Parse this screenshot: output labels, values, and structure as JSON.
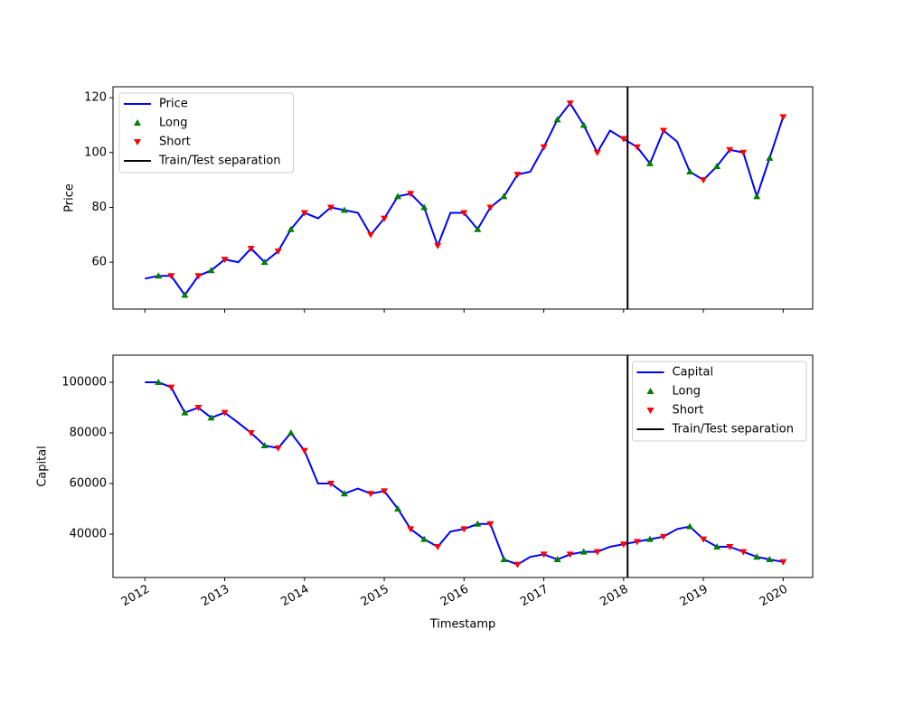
{
  "chart_data": [
    {
      "type": "line",
      "ylabel": "Price",
      "legend": "upper left",
      "xticklabels": false,
      "xlim": [
        2011.6,
        2020.37
      ],
      "xticks": [
        2012,
        2013,
        2014,
        2015,
        2016,
        2017,
        2018,
        2019,
        2020
      ],
      "ylim": [
        42.9,
        124
      ],
      "yticks": [
        60,
        80,
        100,
        120
      ],
      "series": [
        {
          "name": "Price",
          "color": "#0000ff",
          "x": [
            2012.0,
            2012.17,
            2012.33,
            2012.5,
            2012.67,
            2012.83,
            2013.0,
            2013.17,
            2013.33,
            2013.5,
            2013.67,
            2013.83,
            2014.0,
            2014.17,
            2014.33,
            2014.5,
            2014.67,
            2014.83,
            2015.0,
            2015.17,
            2015.33,
            2015.5,
            2015.67,
            2015.83,
            2016.0,
            2016.17,
            2016.33,
            2016.5,
            2016.67,
            2016.83,
            2017.0,
            2017.17,
            2017.33,
            2017.5,
            2017.67,
            2017.83,
            2018.0,
            2018.17,
            2018.33,
            2018.5,
            2018.67,
            2018.83,
            2019.0,
            2019.17,
            2019.33,
            2019.5,
            2019.67,
            2019.83,
            2020.0
          ],
          "values": [
            54,
            55,
            55,
            48,
            55,
            57,
            61,
            60,
            65,
            60,
            64,
            72,
            78,
            76,
            80,
            79,
            78,
            70,
            76,
            84,
            85,
            80,
            66,
            78,
            78,
            72,
            80,
            84,
            92,
            93,
            102,
            112,
            118,
            110,
            100,
            108,
            105,
            102,
            96,
            108,
            104,
            93,
            90,
            95,
            101,
            100,
            84,
            98,
            113
          ]
        },
        {
          "name": "Long",
          "color": "#008000",
          "marker": "up",
          "x": [
            2012.17,
            2012.5,
            2012.83,
            2013.5,
            2013.83,
            2014.5,
            2015.17,
            2015.5,
            2016.17,
            2016.5,
            2017.17,
            2017.5,
            2018.33,
            2018.83,
            2019.17,
            2019.67,
            2019.83
          ],
          "values": [
            55,
            48,
            57,
            60,
            72,
            79,
            84,
            80,
            72,
            84,
            112,
            110,
            96,
            93,
            95,
            84,
            98
          ]
        },
        {
          "name": "Short",
          "color": "#ff0000",
          "marker": "down",
          "x": [
            2012.33,
            2012.67,
            2013.0,
            2013.33,
            2013.67,
            2014.0,
            2014.33,
            2014.83,
            2015.0,
            2015.33,
            2015.67,
            2016.0,
            2016.33,
            2016.67,
            2017.0,
            2017.33,
            2017.67,
            2018.0,
            2018.17,
            2018.5,
            2019.0,
            2019.33,
            2019.5,
            2020.0
          ],
          "values": [
            55,
            55,
            61,
            65,
            64,
            78,
            80,
            70,
            76,
            85,
            66,
            78,
            80,
            92,
            102,
            118,
            100,
            105,
            102,
            108,
            90,
            101,
            100,
            113
          ]
        }
      ],
      "separation": {
        "name": "Train/Test separation",
        "color": "#000000",
        "x": 2018.05
      }
    },
    {
      "type": "line",
      "ylabel": "Capital",
      "xlabel": "Timestamp",
      "legend": "upper right",
      "xticklabels": true,
      "xlim": [
        2011.6,
        2020.37
      ],
      "xticks": [
        2012,
        2013,
        2014,
        2015,
        2016,
        2017,
        2018,
        2019,
        2020
      ],
      "ylim": [
        22860,
        110710
      ],
      "yticks": [
        40000,
        60000,
        80000,
        100000
      ],
      "series": [
        {
          "name": "Capital",
          "color": "#0000ff",
          "x": [
            2012.0,
            2012.17,
            2012.33,
            2012.5,
            2012.67,
            2012.83,
            2013.0,
            2013.17,
            2013.33,
            2013.5,
            2013.67,
            2013.83,
            2014.0,
            2014.17,
            2014.33,
            2014.5,
            2014.67,
            2014.83,
            2015.0,
            2015.17,
            2015.33,
            2015.5,
            2015.67,
            2015.83,
            2016.0,
            2016.17,
            2016.33,
            2016.5,
            2016.67,
            2016.83,
            2017.0,
            2017.17,
            2017.33,
            2017.5,
            2017.67,
            2017.83,
            2018.0,
            2018.17,
            2018.33,
            2018.5,
            2018.67,
            2018.83,
            2019.0,
            2019.17,
            2019.33,
            2019.5,
            2019.67,
            2019.83,
            2020.0
          ],
          "values": [
            100000,
            100000,
            98000,
            88000,
            90000,
            86000,
            88000,
            84000,
            80000,
            75000,
            74000,
            80000,
            73000,
            60000,
            60000,
            56000,
            58000,
            56000,
            57000,
            50000,
            42000,
            38000,
            35000,
            41000,
            42000,
            44000,
            44000,
            30000,
            28000,
            31000,
            32000,
            30000,
            32000,
            33000,
            33000,
            35000,
            36000,
            37000,
            38000,
            39000,
            42000,
            43000,
            38000,
            35000,
            35000,
            33000,
            31000,
            30000,
            29000
          ]
        },
        {
          "name": "Long",
          "color": "#008000",
          "marker": "up",
          "x": [
            2012.17,
            2012.5,
            2012.83,
            2013.5,
            2013.83,
            2014.5,
            2015.17,
            2015.5,
            2016.17,
            2016.5,
            2017.17,
            2017.5,
            2018.33,
            2018.83,
            2019.17,
            2019.67,
            2019.83
          ],
          "values": [
            100000,
            88000,
            86000,
            75000,
            80000,
            56000,
            50000,
            38000,
            44000,
            30000,
            30000,
            33000,
            38000,
            43000,
            35000,
            31000,
            30000
          ]
        },
        {
          "name": "Short",
          "color": "#ff0000",
          "marker": "down",
          "x": [
            2012.33,
            2012.67,
            2013.0,
            2013.33,
            2013.67,
            2014.0,
            2014.33,
            2014.83,
            2015.0,
            2015.33,
            2015.67,
            2016.0,
            2016.33,
            2016.67,
            2017.0,
            2017.33,
            2017.67,
            2018.0,
            2018.17,
            2018.5,
            2019.0,
            2019.33,
            2019.5,
            2020.0
          ],
          "values": [
            98000,
            90000,
            88000,
            80000,
            74000,
            73000,
            60000,
            56000,
            57000,
            42000,
            35000,
            42000,
            44000,
            28000,
            32000,
            32000,
            33000,
            36000,
            37000,
            39000,
            38000,
            35000,
            33000,
            29000
          ]
        }
      ],
      "separation": {
        "name": "Train/Test separation",
        "color": "#000000",
        "x": 2018.05
      }
    }
  ]
}
